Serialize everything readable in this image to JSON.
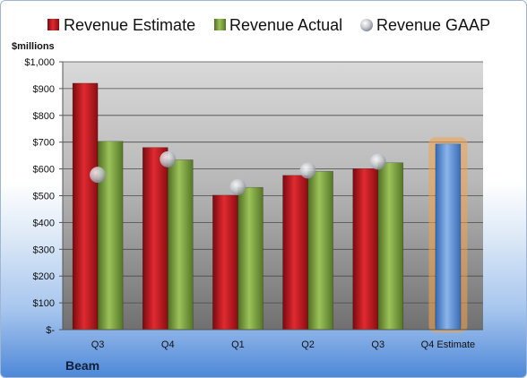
{
  "chart_data": {
    "type": "bar",
    "company": "Beam",
    "unit_label": "$millions",
    "categories": [
      "Q3",
      "Q4",
      "Q1",
      "Q2",
      "Q3",
      "Q4 Estimate"
    ],
    "series": [
      {
        "name": "Revenue Estimate",
        "values": [
          920,
          680,
          502,
          576,
          601,
          null
        ],
        "color": "#c0141c"
      },
      {
        "name": "Revenue Actual",
        "values": [
          703,
          634,
          531,
          591,
          623,
          null
        ],
        "color": "#78a03c"
      },
      {
        "name": "Revenue GAAP",
        "kind": "marker",
        "values": [
          578,
          636,
          532,
          594,
          627,
          null
        ],
        "color": "#b8bcc4"
      }
    ],
    "projection": {
      "category": "Q4 Estimate",
      "value": 693,
      "color": "#4a84d0",
      "highlight": "#f2a24a"
    },
    "yticks": [
      "$-",
      "$100",
      "$200",
      "$300",
      "$400",
      "$500",
      "$600",
      "$700",
      "$800",
      "$900",
      "$1,000"
    ],
    "ylim": [
      0,
      1000
    ],
    "grid": true,
    "legend_position": "top"
  }
}
